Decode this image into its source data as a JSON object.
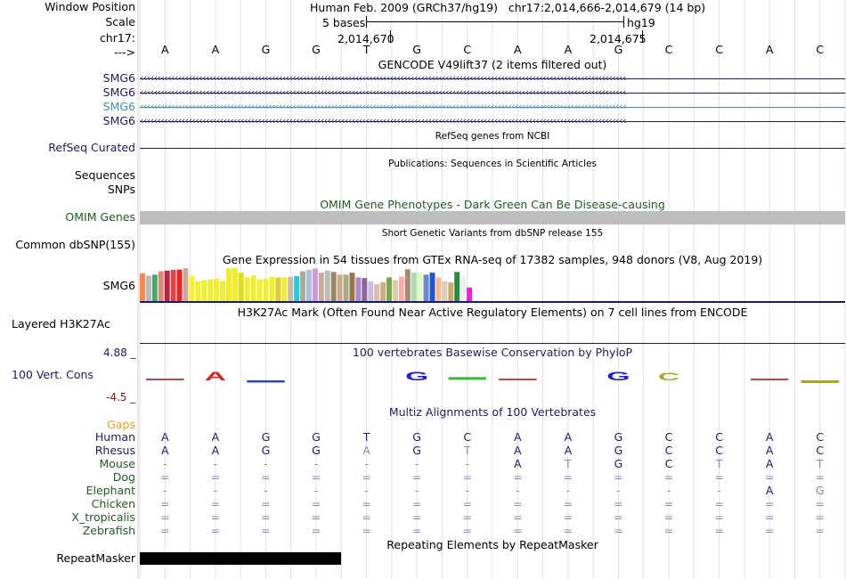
{
  "header": {
    "window_position_label": "Window Position",
    "scale_label": "Scale",
    "chrom_label": "chr17:",
    "strand_label": "--->",
    "position_text": "Human Feb. 2009 (GRCh37/hg19)   chr17:2,014,666-2,014,679 (14 bp)",
    "scale_text": "5 bases",
    "assembly": "hg19",
    "tick1": "2,014,670",
    "tick2": "2,014,675"
  },
  "sequence": [
    "A",
    "A",
    "G",
    "G",
    "T",
    "G",
    "C",
    "A",
    "A",
    "G",
    "C",
    "C",
    "A",
    "C"
  ],
  "tracks": {
    "gencode": {
      "title": "GENCODE V49lift37 (2 items filtered out)",
      "items": [
        {
          "label": "SMG6",
          "color": "#1b1b6b"
        },
        {
          "label": "SMG6",
          "color": "#1b1b6b"
        },
        {
          "label": "SMG6",
          "color": "#3b8fb0"
        },
        {
          "label": "SMG6",
          "color": "#1b1b6b"
        }
      ]
    },
    "refseq": {
      "title": "RefSeq genes from NCBI",
      "label": "RefSeq Curated"
    },
    "publications": {
      "title": "Publications: Sequences in Scientific Articles",
      "label1": "Sequences",
      "label2": "SNPs"
    },
    "omim": {
      "title": "OMIM Gene Phenotypes - Dark Green Can Be Disease-causing",
      "label": "OMIM Genes"
    },
    "dbsnp": {
      "title": "Short Genetic Variants from dbSNP release 155",
      "label": "Common dbSNP(155)"
    },
    "gtex": {
      "title": "Gene Expression in 54 tissues from GTEx RNA-seq of 17382 samples, 948 donors (V8, Aug 2019)",
      "label": "SMG6",
      "values": [
        0.82,
        0.75,
        0.78,
        0.88,
        0.9,
        0.92,
        0.93,
        0.97,
        0.75,
        0.58,
        0.62,
        0.64,
        0.66,
        0.6,
        0.97,
        0.97,
        0.84,
        0.7,
        0.76,
        0.64,
        0.66,
        0.72,
        0.7,
        0.7,
        0.72,
        0.74,
        0.88,
        0.92,
        0.96,
        0.84,
        0.9,
        0.86,
        0.78,
        0.78,
        0.84,
        0.7,
        0.68,
        0.58,
        0.5,
        0.56,
        0.7,
        0.62,
        0.72,
        0.94,
        0.84,
        0.84,
        0.78,
        0.84,
        0.7,
        0.58,
        0.55,
        0.86,
        0.72,
        0.4
      ],
      "colors": [
        "#ff8844",
        "#bbbbbb",
        "#44aa66",
        "#dd8877",
        "#bb2244",
        "#dd4444",
        "#ee2222",
        "#ccaa99",
        "#ffee33",
        "#eeee33",
        "#eeee33",
        "#eeee33",
        "#eeee33",
        "#eeee33",
        "#eeee22",
        "#eeee22",
        "#dddd22",
        "#eeee33",
        "#eeee33",
        "#eeee33",
        "#eeee33",
        "#eeee33",
        "#ddcc33",
        "#eeee33",
        "#ccbbaa",
        "#22ccdd",
        "#aaaa99",
        "#aabbdd",
        "#cc99dd",
        "#ccaa99",
        "#bbbbbb",
        "#998866",
        "#ccaa88",
        "#aaaa88",
        "#997744",
        "#aa88cc",
        "#886699",
        "#ccbbdd",
        "#ddbbaa",
        "#ccaa88",
        "#77aa44",
        "#ddccaa",
        "#ffaaaa",
        "#aa8877",
        "#aaddaa",
        "#ddffbb",
        "#6688cc",
        "#2255cc",
        "#ffbb88",
        "#ddccbb",
        "#ccaa66",
        "#228844",
        "#eeeeee",
        "#ee22dd"
      ]
    },
    "h3k27ac": {
      "title": "H3K27Ac Mark (Often Found Near Active Regulatory Elements) on 7 cell lines from ENCODE",
      "label": "Layered H3K27Ac"
    },
    "phylop": {
      "title": "100 vertebrates Basewise Conservation by PhyloP",
      "label": "100 Vert. Cons",
      "max": "4.88 _",
      "min": "-4.5 _",
      "glyphs": [
        {
          "base": "",
          "color": "#cc4444",
          "h": 0.05,
          "neg": false
        },
        {
          "base": "A",
          "color": "#dd2222",
          "h": 0.35,
          "neg": false
        },
        {
          "base": "",
          "color": "#2244cc",
          "h": 0.08,
          "neg": true
        },
        {
          "base": "",
          "color": "",
          "h": 0,
          "neg": false
        },
        {
          "base": "",
          "color": "",
          "h": 0,
          "neg": false
        },
        {
          "base": "G",
          "color": "#2222cc",
          "h": 0.35,
          "neg": false
        },
        {
          "base": "",
          "color": "#33bb33",
          "h": 0.12,
          "neg": false
        },
        {
          "base": "",
          "color": "#cc4444",
          "h": 0.05,
          "neg": false
        },
        {
          "base": "",
          "color": "",
          "h": 0,
          "neg": false
        },
        {
          "base": "G",
          "color": "#2222cc",
          "h": 0.35,
          "neg": false
        },
        {
          "base": "C",
          "color": "#aaaa22",
          "h": 0.3,
          "neg": false
        },
        {
          "base": "",
          "color": "",
          "h": 0,
          "neg": false
        },
        {
          "base": "",
          "color": "#cc4444",
          "h": 0.05,
          "neg": false
        },
        {
          "base": "",
          "color": "#aaaa22",
          "h": 0.12,
          "neg": true
        }
      ]
    },
    "multiz": {
      "title": "Multiz Alignments of 100 Vertebrates",
      "gaps_label": "Gaps",
      "species": [
        {
          "name": "Human",
          "color": "#1b1b6b",
          "seq": [
            "A",
            "A",
            "G",
            "G",
            "T",
            "G",
            "C",
            "A",
            "A",
            "G",
            "C",
            "C",
            "A",
            "C"
          ]
        },
        {
          "name": "Rhesus",
          "color": "#1b1b6b",
          "seq": [
            "A",
            "A",
            "G",
            "G",
            "A",
            "G",
            "T",
            "A",
            "A",
            "G",
            "C",
            "C",
            "A",
            "C"
          ]
        },
        {
          "name": "Mouse",
          "color": "#1f5d1f",
          "seq": [
            "-",
            "-",
            "-",
            "-",
            "-",
            "-",
            "-",
            "A",
            "T",
            "G",
            "C",
            "T",
            "A",
            "T"
          ]
        },
        {
          "name": "Dog",
          "color": "#1f5d1f",
          "seq": [
            "=",
            "=",
            "=",
            "=",
            "=",
            "=",
            "=",
            "=",
            "=",
            "=",
            "=",
            "=",
            "=",
            "="
          ]
        },
        {
          "name": "Elephant",
          "color": "#1f5d1f",
          "seq": [
            "-",
            "-",
            "-",
            "-",
            "-",
            "-",
            "-",
            "-",
            "-",
            "-",
            "-",
            "-",
            "A",
            "G"
          ]
        },
        {
          "name": "Chicken",
          "color": "#1f5d1f",
          "seq": [
            "=",
            "=",
            "=",
            "=",
            "=",
            "=",
            "=",
            "=",
            "=",
            "=",
            "=",
            "=",
            "=",
            "="
          ]
        },
        {
          "name": "X_tropicalis",
          "color": "#1f5d1f",
          "seq": [
            "=",
            "=",
            "=",
            "=",
            "=",
            "=",
            "=",
            "=",
            "=",
            "=",
            "=",
            "=",
            "=",
            "="
          ]
        },
        {
          "name": "Zebrafish",
          "color": "#1f5d1f",
          "seq": [
            "=",
            "=",
            "=",
            "=",
            "=",
            "=",
            "=",
            "=",
            "=",
            "=",
            "=",
            "=",
            "=",
            "="
          ]
        }
      ],
      "dim_map": [
        [
          0,
          0,
          0,
          0,
          0,
          0,
          0,
          0,
          0,
          0,
          0,
          0,
          0,
          0
        ],
        [
          0,
          0,
          0,
          0,
          1,
          0,
          1,
          0,
          0,
          0,
          0,
          0,
          0,
          0
        ],
        [
          1,
          1,
          1,
          1,
          1,
          1,
          1,
          0,
          1,
          0,
          0,
          1,
          0,
          1
        ],
        [
          1,
          1,
          1,
          1,
          1,
          1,
          1,
          1,
          1,
          1,
          1,
          1,
          1,
          1
        ],
        [
          1,
          1,
          1,
          1,
          1,
          1,
          1,
          1,
          1,
          1,
          1,
          1,
          0,
          1
        ],
        [
          1,
          1,
          1,
          1,
          1,
          1,
          1,
          1,
          1,
          1,
          1,
          1,
          1,
          1
        ],
        [
          1,
          1,
          1,
          1,
          1,
          1,
          1,
          1,
          1,
          1,
          1,
          1,
          1,
          1
        ],
        [
          1,
          1,
          1,
          1,
          1,
          1,
          1,
          1,
          1,
          1,
          1,
          1,
          1,
          1
        ]
      ]
    },
    "rmsk": {
      "title": "Repeating Elements by RepeatMasker",
      "label": "RepeatMasker"
    }
  },
  "colors": {
    "navy": "#1b1b6b",
    "green": "#1f5d1f",
    "gaps": "#e6a020",
    "phylop_max": "#1b1b6b",
    "phylop_min": "#8b1a1a"
  }
}
